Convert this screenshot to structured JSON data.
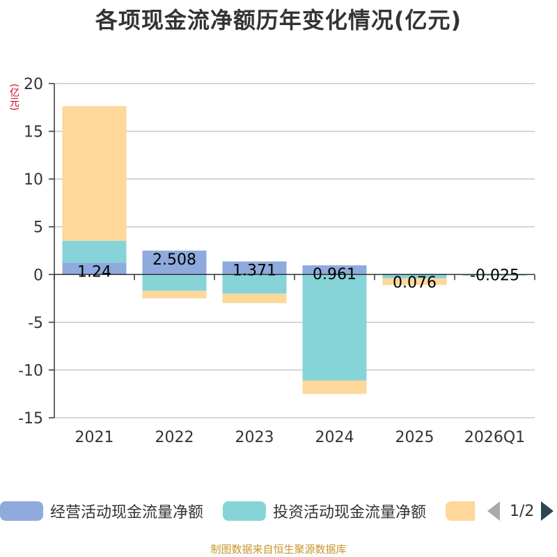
{
  "title": "各项现金流净额历年变化情况(亿元)",
  "unit_label": "(亿元)",
  "footer": "制图数据来自恒生聚源数据库",
  "legend": {
    "items": [
      {
        "label": "经营活动现金流量净额",
        "color": "#8faadc"
      },
      {
        "label": "投资活动现金流量净额",
        "color": "#86d4d8"
      },
      {
        "label": "",
        "color": "#fdd89a"
      }
    ],
    "page": "1/2"
  },
  "chart_data": {
    "type": "bar",
    "stacked": true,
    "title": "各项现金流净额历年变化情况(亿元)",
    "ylabel": "(亿元)",
    "ylim": [
      -15,
      20
    ],
    "yticks": [
      20,
      15,
      10,
      5,
      0,
      -5,
      -10,
      -15
    ],
    "categories": [
      "2021",
      "2022",
      "2023",
      "2024",
      "2025",
      "2026Q1"
    ],
    "series": [
      {
        "name": "经营活动现金流量净额",
        "color": "#8faadc",
        "values": [
          1.24,
          2.508,
          1.371,
          0.961,
          0.076,
          -0.025
        ],
        "labels": [
          "1.24",
          "2.508",
          "1.371",
          "0.961",
          "0.076",
          "-0.025"
        ]
      },
      {
        "name": "投资活动现金流量净额",
        "color": "#86d4d8",
        "values": [
          2.3,
          -1.7,
          -2.0,
          -11.1,
          -0.4,
          -0.1
        ]
      },
      {
        "name": "",
        "color": "#fdd89a",
        "values": [
          14.1,
          -0.8,
          -1.0,
          -1.4,
          -0.7,
          0
        ]
      }
    ]
  }
}
